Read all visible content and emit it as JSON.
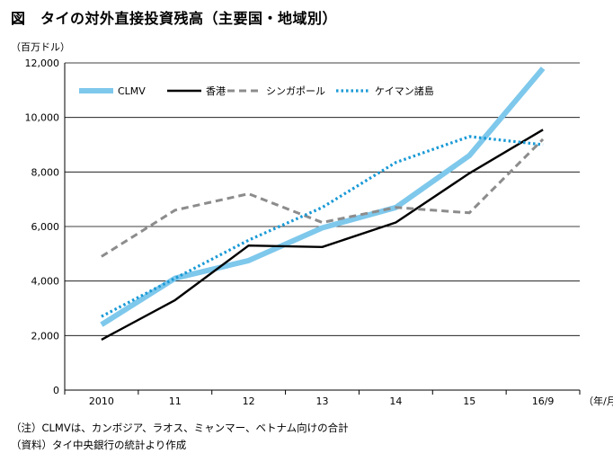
{
  "header": {
    "title": "図　タイの対外直接投資残高（主要国・地域別）",
    "unit": "（百万ドル）"
  },
  "footer": {
    "note": "（注）CLMVは、カンボジア、ラオス、ミャンマー、ベトナム向けの合計",
    "source": "（資料）タイ中央銀行の統計より作成"
  },
  "chart_data": {
    "type": "line",
    "title": "タイの対外直接投資残高（主要国・地域別）",
    "ylabel": "（百万ドル）",
    "xlabel": "（年/月）",
    "categories": [
      "2010",
      "11",
      "12",
      "13",
      "14",
      "15",
      "16/9"
    ],
    "ylim": [
      0,
      12000
    ],
    "yticks": [
      0,
      2000,
      4000,
      6000,
      8000,
      10000,
      12000
    ],
    "ytick_labels": [
      "0",
      "2,000",
      "4,000",
      "6,000",
      "8,000",
      "10,000",
      "12,000"
    ],
    "grid": true,
    "legend_position": "top-left",
    "series": [
      {
        "name": "CLMV",
        "values": [
          2400,
          4100,
          4750,
          5950,
          6700,
          8600,
          11800
        ],
        "color": "#7ec8ec",
        "style": "thick"
      },
      {
        "name": "香港",
        "values": [
          1850,
          3300,
          5300,
          5250,
          6150,
          7950,
          9550
        ],
        "color": "#000000",
        "style": "solid"
      },
      {
        "name": "シンガポール",
        "values": [
          4900,
          6600,
          7200,
          6150,
          6700,
          6500,
          9200
        ],
        "color": "#8c8c8c",
        "style": "dashed"
      },
      {
        "name": "ケイマン諸島",
        "values": [
          2700,
          4100,
          5500,
          6700,
          8350,
          9300,
          9000
        ],
        "color": "#1a9ad6",
        "style": "dotted"
      }
    ]
  }
}
